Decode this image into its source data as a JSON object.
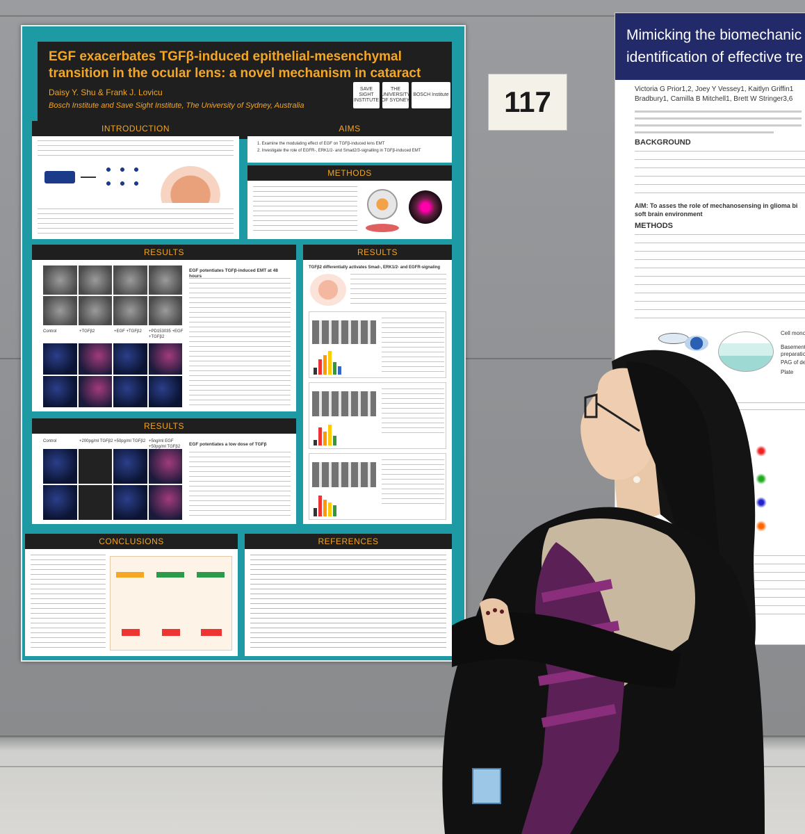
{
  "card": {
    "number": "117"
  },
  "poster_left": {
    "title": "EGF exacerbates TGFβ-induced epithelial-mesenchymal transition in the ocular lens: a novel mechanism in cataract",
    "authors": "Daisy Y. Shu & Frank J. Lovicu",
    "affiliation": "Bosch Institute and Save Sight Institute, The University of Sydney, Australia",
    "logos": [
      "SAVE SIGHT INSTITUTE",
      "THE UNIVERSITY OF SYDNEY",
      "BOSCH Institute"
    ],
    "sections": {
      "introduction": "INTRODUCTION",
      "aims": "AIMS",
      "methods": "METHODS",
      "results1": "RESULTS",
      "results2": "RESULTS",
      "results3": "RESULTS",
      "conclusions": "CONCLUSIONS",
      "references": "REFERENCES"
    },
    "aims_items": [
      "1.  Examine the modulating effect of EGF on TGFβ-induced lens EMT",
      "2.  Investigate the role of EGFR-, ERK1/2- and Smad2/3-signalling in TGFβ-induced EMT"
    ],
    "results1_heading": "EGF potentiates TGFβ-induced EMT at 48 hours",
    "results1_cols": [
      "Control",
      "+TGFβ2",
      "+EGF +TGFβ2",
      "+PD153035 +EGF +TGFβ2"
    ],
    "results2_heading": "TGFβ2 differentially activates Smad-, ERK1/2- and EGFR-signaling",
    "results3_heading": "EGF potentiates a low dose of TGFβ",
    "results3_cols": [
      "Control",
      "+200pg/ml TGFβ2",
      "+50pg/ml TGFβ2",
      "+5ng/ml EGF +50pg/ml TGFβ2"
    ]
  },
  "poster_right": {
    "title_line1": "Mimicking the biomechanic",
    "title_line2": "identification of effective tre",
    "authors1": "Victoria G Prior1,2, Joey Y Vessey1, Kaitlyn Griffin1",
    "authors2": "Bradbury1, Camilla B Mitchell1, Brett W Stringer3,6",
    "background": "BACKGROUND",
    "aim": "AIM: To asses the role of mechanosensing in glioma bi",
    "aim2": "soft brain environment",
    "methods": "METHODS",
    "legend": [
      "Cell monolayer",
      "Basement membr",
      "preparation",
      "PAG of defined rig",
      "Plate"
    ]
  }
}
